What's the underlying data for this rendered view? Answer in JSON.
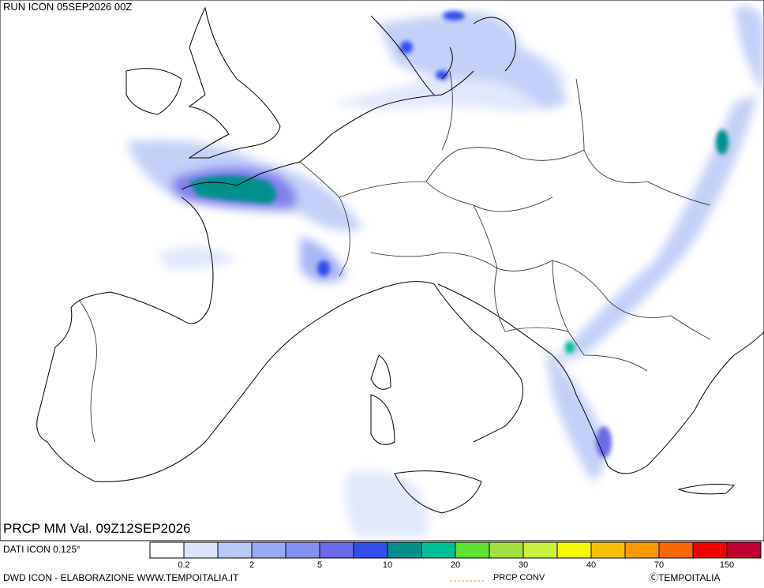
{
  "header": {
    "title": "RUN ICON 05SEP2026 00Z"
  },
  "map": {
    "validity": "PRCP MM Val. 09Z12SEP2026"
  },
  "footer": {
    "data_source": "DATI ICON 0.125°",
    "credits": "DWD ICON - ELABORAZIONE WWW.TEMPOITALIA.IT",
    "conv_legend": "PRCP CONV",
    "copyright": "ⒸTEMPOITALIA"
  },
  "scale": {
    "colors": [
      "#ffffff",
      "#dce4fb",
      "#b9c8f6",
      "#98aaf2",
      "#8490ef",
      "#6a6aea",
      "#2f50e8",
      "#00908c",
      "#00c09a",
      "#60e030",
      "#a0e040",
      "#c8f040",
      "#f8f800",
      "#f8c000",
      "#f89a00",
      "#f86a00",
      "#f00000",
      "#c00030"
    ],
    "labels": [
      "0.2",
      "2",
      "5",
      "10",
      "20",
      "30",
      "40",
      "70",
      "150"
    ]
  }
}
